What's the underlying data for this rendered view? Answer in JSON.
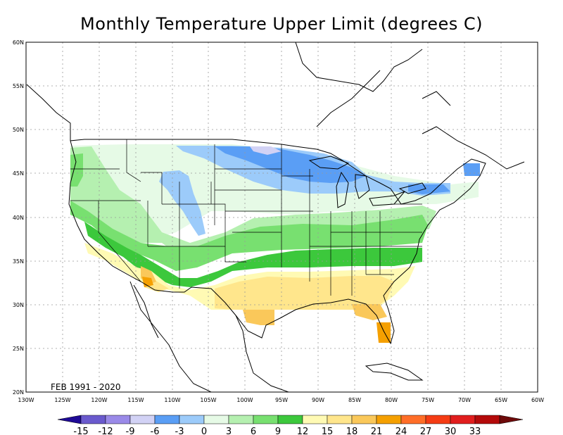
{
  "title": "Monthly Temperature Upper Limit (degrees C)",
  "period_label": "FEB 1991 - 2020",
  "lat_labels": [
    "60N",
    "55N",
    "50N",
    "45N",
    "40N",
    "35N",
    "30N",
    "25N",
    "20N"
  ],
  "lon_labels": [
    "130W",
    "125W",
    "120W",
    "115W",
    "110W",
    "105W",
    "100W",
    "95W",
    "90W",
    "85W",
    "80W",
    "75W",
    "70W",
    "65W",
    "60W"
  ],
  "colorbar": {
    "labels": [
      "-15",
      "-12",
      "-9",
      "-6",
      "-3",
      "0",
      "3",
      "6",
      "9",
      "12",
      "15",
      "18",
      "21",
      "24",
      "27",
      "30",
      "33"
    ],
    "colors": [
      "#6a5acd",
      "#9a8ae8",
      "#d2d2f5",
      "#5a9ef5",
      "#9ccbfa",
      "#e6fae6",
      "#b5f0b0",
      "#78e070",
      "#3cc83c",
      "#fffab4",
      "#ffe68c",
      "#fac85a",
      "#f5a000",
      "#ff6e28",
      "#f53c14",
      "#e11e1e",
      "#b40a0a"
    ],
    "low_arrow_color": "#1e0a96",
    "high_arrow_color": "#6e0a0a"
  }
}
